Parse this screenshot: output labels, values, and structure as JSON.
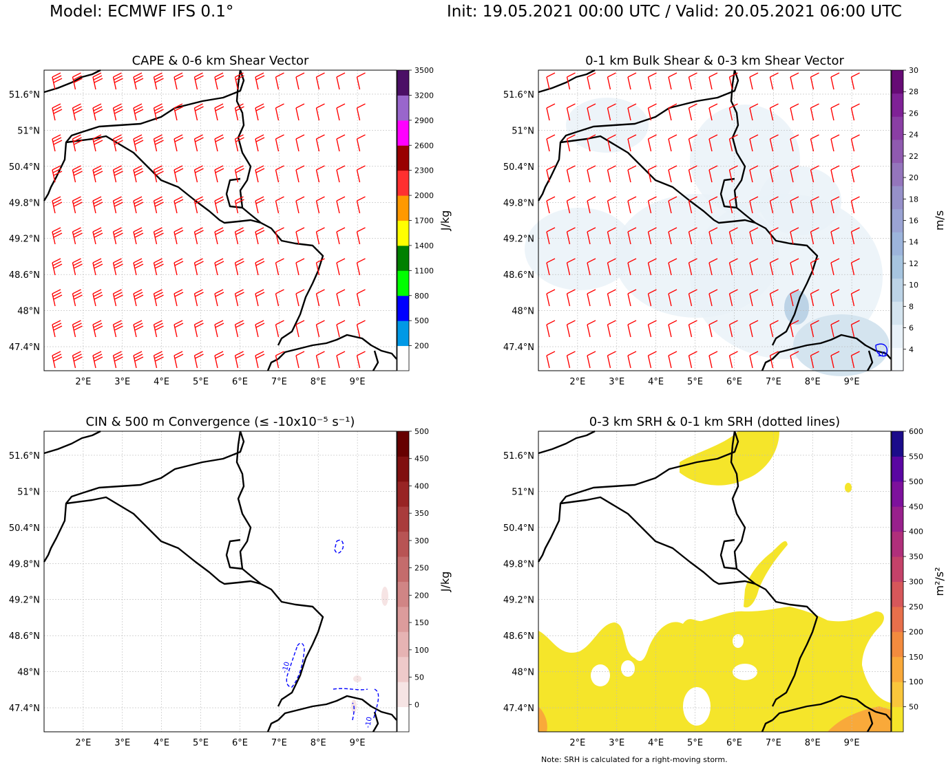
{
  "header": {
    "model": "Model: ECMWF IFS 0.1°",
    "init_valid": "Init: 19.05.2021 00:00 UTC / Valid: 20.05.2021 06:00 UTC"
  },
  "footnote": "Note: SRH is calculated for a right-moving storm.",
  "colors": {
    "border": "#000000",
    "barbs": "#ff0000",
    "convergence_contour": "#0000ff",
    "srh_fill": "#f5e52a",
    "srh_fill_high": "#f9a93a"
  },
  "chart_data": [
    {
      "type": "heatmap",
      "title": "CAPE & 0-6 km Shear Vector",
      "x_ticks": [
        "2°E",
        "3°E",
        "4°E",
        "5°E",
        "6°E",
        "7°E",
        "8°E",
        "9°E"
      ],
      "y_ticks": [
        "51.6°N",
        "51°N",
        "50.4°N",
        "49.8°N",
        "49.2°N",
        "48.6°N",
        "48°N",
        "47.4°N"
      ],
      "xlim": [
        1.0,
        10.0
      ],
      "ylim": [
        47.0,
        52.0
      ],
      "grid": true,
      "overlay": "0-6 km shear wind barbs (red), mostly 35-50 kt from the west-southwest, weaker (10-20 kt) in the east",
      "colorbar": {
        "label": "J/kg",
        "ticks": [
          "200",
          "500",
          "800",
          "1100",
          "1400",
          "1700",
          "2000",
          "2300",
          "2600",
          "2900",
          "3200",
          "3500"
        ],
        "levels": [
          200,
          500,
          800,
          1100,
          1400,
          1700,
          2000,
          2300,
          2600,
          2900,
          3200,
          3500
        ],
        "colors": [
          "#ffffff",
          "#0099e6",
          "#0000ff",
          "#00ff00",
          "#008000",
          "#ffff00",
          "#ff9900",
          "#ff3030",
          "#990000",
          "#ff00ff",
          "#9966cc",
          "#4b0f66"
        ]
      },
      "values_note": "CAPE below 200 J/kg over the whole domain (no shading)"
    },
    {
      "type": "heatmap",
      "title": "0-1 km Bulk Shear & 0-3 km Shear Vector",
      "x_ticks": [
        "2°E",
        "3°E",
        "4°E",
        "5°E",
        "6°E",
        "7°E",
        "8°E",
        "9°E"
      ],
      "y_ticks": [
        "51.6°N",
        "51°N",
        "50.4°N",
        "49.8°N",
        "49.2°N",
        "48.6°N",
        "48°N",
        "47.4°N"
      ],
      "xlim": [
        1.0,
        10.0
      ],
      "ylim": [
        47.0,
        52.0
      ],
      "grid": true,
      "overlay": "0-3 km shear wind barbs (red), mostly 10-25 kt; blue contour of 10 m/s near 9.5°E 47.3°N",
      "contour_labels": [
        "10"
      ],
      "colorbar": {
        "label": "m/s",
        "ticks": [
          "4",
          "6",
          "8",
          "10",
          "12",
          "14",
          "16",
          "18",
          "20",
          "22",
          "24",
          "26",
          "28",
          "30"
        ],
        "levels": [
          4,
          6,
          8,
          10,
          12,
          14,
          16,
          18,
          20,
          22,
          24,
          26,
          28,
          30
        ],
        "colors": [
          "#f7fbff",
          "#e8f1f8",
          "#d4e4ef",
          "#bcd3e6",
          "#a6c4df",
          "#9cb4db",
          "#9aa3d3",
          "#9690c9",
          "#9475bc",
          "#8f5aaf",
          "#8a3ea4",
          "#7f2196",
          "#660b75"
        ]
      },
      "values_note": "mostly 4-8 m/s; 8-12 m/s in the southeast near the Alps"
    },
    {
      "type": "heatmap",
      "title": "CIN & 500 m Convergence (≤ -10x10⁻⁵ s⁻¹)",
      "x_ticks": [
        "2°E",
        "3°E",
        "4°E",
        "5°E",
        "6°E",
        "7°E",
        "8°E",
        "9°E"
      ],
      "y_ticks": [
        "51.6°N",
        "51°N",
        "50.4°N",
        "49.8°N",
        "49.2°N",
        "48.6°N",
        "48°N",
        "47.4°N"
      ],
      "xlim": [
        1.0,
        10.0
      ],
      "ylim": [
        47.0,
        52.0
      ],
      "grid": true,
      "overlay": "dashed blue convergence contours (-10) near 7.3°E 48.2°N, 8.6°E 50.3°N and along the Alps",
      "contour_labels": [
        "-10",
        "-10"
      ],
      "colorbar": {
        "label": "J/kg",
        "ticks": [
          "0",
          "50",
          "100",
          "150",
          "200",
          "250",
          "300",
          "350",
          "400",
          "450",
          "500"
        ],
        "levels": [
          0,
          50,
          100,
          150,
          200,
          250,
          300,
          350,
          400,
          450,
          500
        ],
        "colors": [
          "#ffffff",
          "#f6e4e4",
          "#efcaca",
          "#e6b3b3",
          "#dc9c9c",
          "#d08585",
          "#c46c6c",
          "#b85454",
          "#a93c3c",
          "#982424",
          "#801010",
          "#660000"
        ]
      },
      "values_note": "CIN near 0 J/kg almost everywhere; small 0-50 J/kg patches"
    },
    {
      "type": "heatmap",
      "title": "0-3 km SRH & 0-1 km SRH (dotted lines)",
      "x_ticks": [
        "2°E",
        "3°E",
        "4°E",
        "5°E",
        "6°E",
        "7°E",
        "8°E",
        "9°E"
      ],
      "y_ticks": [
        "51.6°N",
        "51°N",
        "50.4°N",
        "49.8°N",
        "49.2°N",
        "48.6°N",
        "48°N",
        "47.4°N"
      ],
      "xlim": [
        1.0,
        10.0
      ],
      "ylim": [
        47.0,
        52.0
      ],
      "grid": true,
      "colorbar": {
        "label": "m²/s²",
        "ticks": [
          "50",
          "100",
          "150",
          "200",
          "250",
          "300",
          "350",
          "400",
          "450",
          "500",
          "550",
          "600"
        ],
        "levels": [
          50,
          100,
          150,
          200,
          250,
          300,
          350,
          400,
          450,
          500,
          550,
          600
        ],
        "colors": [
          "#f5e52a",
          "#f9c63b",
          "#f9a93a",
          "#f38b3e",
          "#e76f4b",
          "#d6575a",
          "#c44269",
          "#b02f7b",
          "#98208c",
          "#7d119c",
          "#5a06a2",
          "#1b0c8a"
        ]
      },
      "values_note": "50-100 m²/s² over the southern half and the northern Ardennes; 100-150 m²/s² at the southwest and southeast corners"
    }
  ]
}
